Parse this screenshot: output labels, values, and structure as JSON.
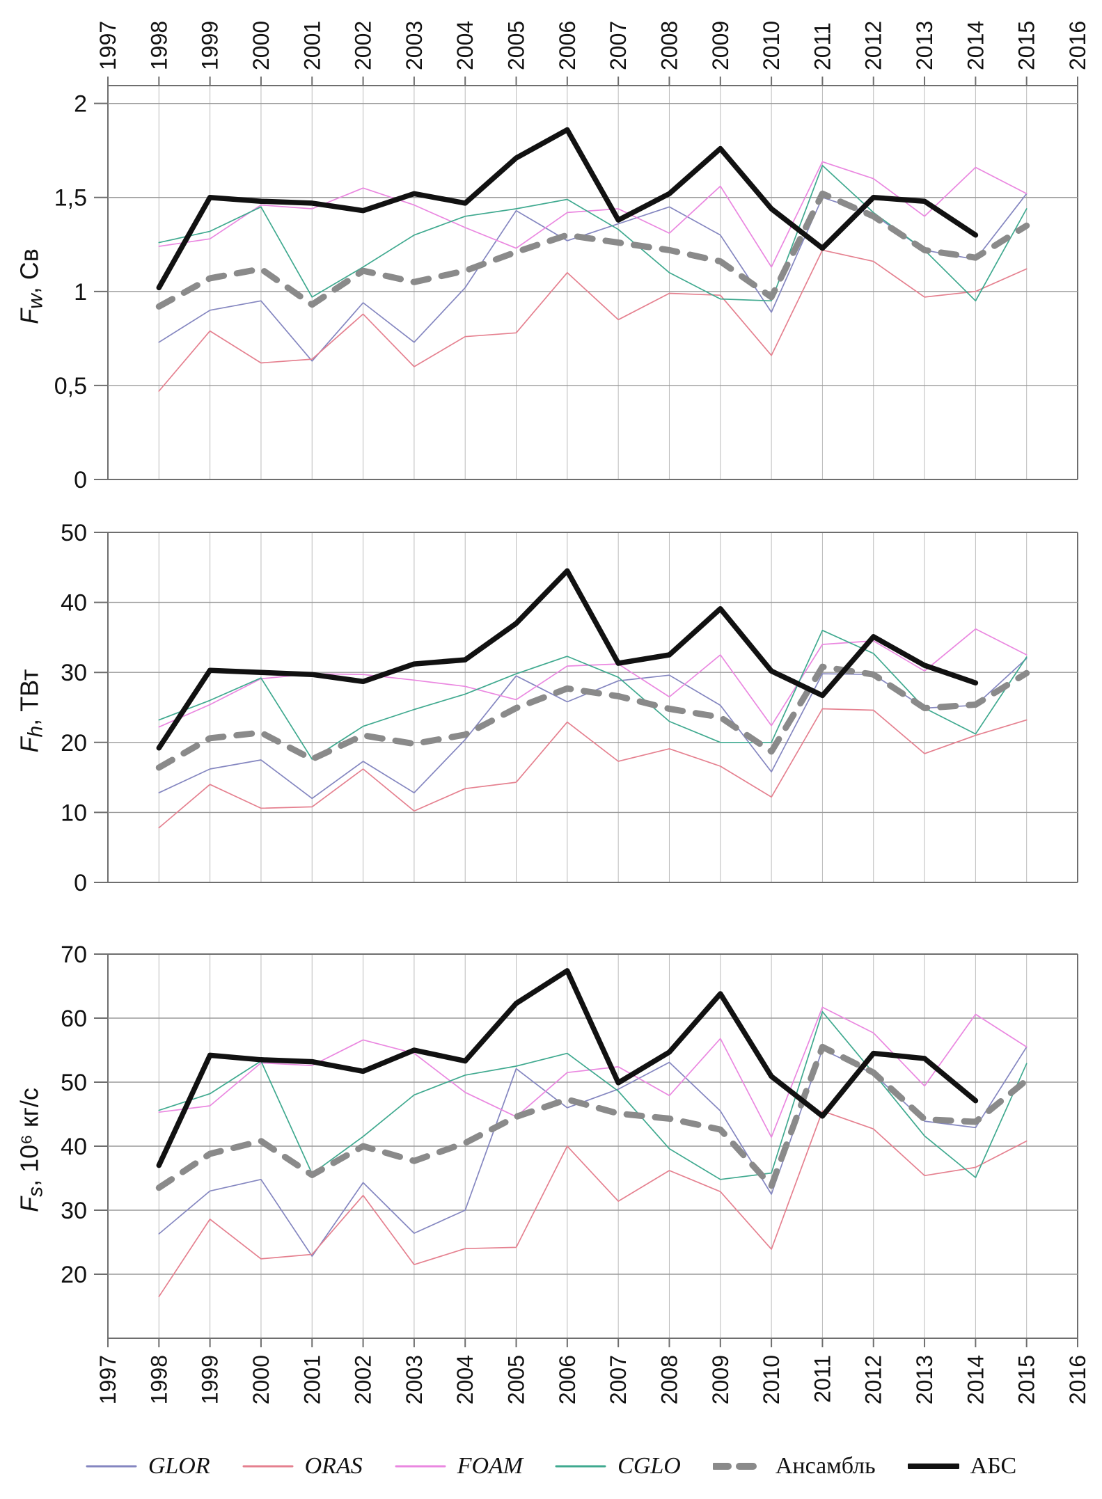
{
  "page": {
    "background": "#ffffff"
  },
  "axes": {
    "years_full": [
      1997,
      1998,
      1999,
      2000,
      2001,
      2002,
      2003,
      2004,
      2005,
      2006,
      2007,
      2008,
      2009,
      2010,
      2011,
      2012,
      2013,
      2014,
      2015,
      2016
    ]
  },
  "colors": {
    "GLOR": "#8486c0",
    "ORAS": "#e5808f",
    "FOAM": "#ea87e0",
    "CGLO": "#3fa98f",
    "ensemble": "#8a8a8a",
    "abs": "#111111",
    "grid_minor": "#bbbbbb",
    "grid_major": "#9a9a9a",
    "axis": "#6e6e6e"
  },
  "chart_data": [
    {
      "type": "line",
      "panel": "Fw",
      "ylabel": {
        "main": "F",
        "sub": "w",
        "rest": ", Св"
      },
      "ylim": [
        0,
        2.095
      ],
      "x": [
        1998,
        1999,
        2000,
        2001,
        2002,
        2003,
        2004,
        2005,
        2006,
        2007,
        2008,
        2009,
        2010,
        2011,
        2012,
        2013,
        2014,
        2015
      ],
      "yticks": [
        {
          "v": 0,
          "label": "0"
        },
        {
          "v": 0.5,
          "label": "0,5"
        },
        {
          "v": 1,
          "label": "1"
        },
        {
          "v": 1.5,
          "label": "1,5"
        },
        {
          "v": 2,
          "label": "2"
        }
      ],
      "series": [
        {
          "name": "GLOR",
          "color": "#8486c0",
          "width": 1.7,
          "style": "solid",
          "values": [
            0.73,
            0.9,
            0.95,
            0.63,
            0.94,
            0.73,
            1.02,
            1.43,
            1.27,
            1.36,
            1.45,
            1.3,
            0.89,
            1.5,
            1.41,
            1.22,
            1.17,
            1.52
          ]
        },
        {
          "name": "ORAS",
          "color": "#e5808f",
          "width": 1.7,
          "style": "solid",
          "values": [
            0.47,
            0.79,
            0.62,
            0.64,
            0.88,
            0.6,
            0.76,
            0.78,
            1.1,
            0.85,
            0.99,
            0.98,
            0.66,
            1.22,
            1.16,
            0.97,
            1.0,
            1.12
          ]
        },
        {
          "name": "FOAM",
          "color": "#ea87e0",
          "width": 1.7,
          "style": "solid",
          "values": [
            1.24,
            1.28,
            1.46,
            1.44,
            1.55,
            1.46,
            1.34,
            1.23,
            1.42,
            1.44,
            1.31,
            1.56,
            1.13,
            1.69,
            1.6,
            1.4,
            1.66,
            1.52
          ]
        },
        {
          "name": "CGLO",
          "color": "#3fa98f",
          "width": 1.7,
          "style": "solid",
          "values": [
            1.26,
            1.32,
            1.45,
            0.97,
            1.13,
            1.3,
            1.4,
            1.44,
            1.49,
            1.33,
            1.1,
            0.96,
            0.95,
            1.67,
            1.42,
            1.22,
            0.95,
            1.44
          ]
        },
        {
          "name": "Ансамбль",
          "color": "#8a8a8a",
          "width": 9,
          "style": "dashed",
          "values": [
            0.92,
            1.07,
            1.12,
            0.93,
            1.11,
            1.05,
            1.11,
            1.21,
            1.3,
            1.26,
            1.22,
            1.16,
            0.97,
            1.52,
            1.4,
            1.22,
            1.18,
            1.35
          ]
        },
        {
          "name": "АБС",
          "color": "#111111",
          "width": 7.5,
          "style": "thick",
          "values": [
            1.02,
            1.5,
            1.48,
            1.47,
            1.43,
            1.52,
            1.47,
            1.71,
            1.86,
            1.38,
            1.52,
            1.76,
            1.44,
            1.23,
            1.5,
            1.48,
            1.3
          ]
        }
      ]
    },
    {
      "type": "line",
      "panel": "Fh",
      "ylabel": {
        "main": "F",
        "sub": "h",
        "rest": ", ТВт"
      },
      "ylim": [
        0,
        50
      ],
      "x": [
        1998,
        1999,
        2000,
        2001,
        2002,
        2003,
        2004,
        2005,
        2006,
        2007,
        2008,
        2009,
        2010,
        2011,
        2012,
        2013,
        2014,
        2015
      ],
      "yticks": [
        {
          "v": 0,
          "label": "0"
        },
        {
          "v": 10,
          "label": "10"
        },
        {
          "v": 20,
          "label": "20"
        },
        {
          "v": 30,
          "label": "30"
        },
        {
          "v": 40,
          "label": "40"
        },
        {
          "v": 50,
          "label": "50"
        }
      ],
      "series": [
        {
          "name": "GLOR",
          "color": "#8486c0",
          "width": 1.7,
          "style": "solid",
          "values": [
            12.8,
            16.2,
            17.5,
            12.0,
            17.3,
            12.8,
            20.4,
            29.5,
            25.8,
            28.8,
            29.6,
            25.3,
            15.8,
            29.8,
            29.7,
            24.9,
            25.3,
            32.0
          ]
        },
        {
          "name": "ORAS",
          "color": "#e5808f",
          "width": 1.7,
          "style": "solid",
          "values": [
            7.8,
            14.0,
            10.6,
            10.8,
            16.2,
            10.2,
            13.4,
            14.3,
            22.9,
            17.3,
            19.1,
            16.6,
            12.2,
            24.8,
            24.6,
            18.4,
            21.0,
            23.2
          ]
        },
        {
          "name": "FOAM",
          "color": "#ea87e0",
          "width": 1.7,
          "style": "solid",
          "values": [
            22.2,
            25.4,
            29.1,
            29.8,
            29.7,
            28.9,
            28.0,
            26.1,
            30.9,
            31.2,
            26.5,
            32.5,
            22.4,
            34.0,
            34.5,
            30.2,
            36.2,
            32.5
          ]
        },
        {
          "name": "CGLO",
          "color": "#3fa98f",
          "width": 1.7,
          "style": "solid",
          "values": [
            23.2,
            26.0,
            29.2,
            17.6,
            22.3,
            24.7,
            26.9,
            29.8,
            32.3,
            29.3,
            23.0,
            20.0,
            20.0,
            36.0,
            32.7,
            24.9,
            21.2,
            32.2
          ]
        },
        {
          "name": "Ансамбль",
          "color": "#8a8a8a",
          "width": 9,
          "style": "dashed",
          "values": [
            16.4,
            20.6,
            21.4,
            17.6,
            21.0,
            19.8,
            21.1,
            24.9,
            27.7,
            26.6,
            24.8,
            23.6,
            18.7,
            30.8,
            29.7,
            24.9,
            25.4,
            29.9
          ]
        },
        {
          "name": "АБС",
          "color": "#111111",
          "width": 7.5,
          "style": "thick",
          "values": [
            19.2,
            30.3,
            30.0,
            29.7,
            28.7,
            31.2,
            31.8,
            37.0,
            44.5,
            31.3,
            32.5,
            39.1,
            30.2,
            26.7,
            35.1,
            31.0,
            28.5
          ]
        }
      ]
    },
    {
      "type": "line",
      "panel": "Fs",
      "ylabel": {
        "main": "F",
        "sub": "s",
        "rest": ", 10⁶ кг/с"
      },
      "ylim": [
        10,
        70
      ],
      "x": [
        1998,
        1999,
        2000,
        2001,
        2002,
        2003,
        2004,
        2005,
        2006,
        2007,
        2008,
        2009,
        2010,
        2011,
        2012,
        2013,
        2014,
        2015
      ],
      "yticks": [
        {
          "v": 20,
          "label": "20"
        },
        {
          "v": 30,
          "label": "30"
        },
        {
          "v": 40,
          "label": "40"
        },
        {
          "v": 50,
          "label": "50"
        },
        {
          "v": 60,
          "label": "60"
        },
        {
          "v": 70,
          "label": "70"
        }
      ],
      "series": [
        {
          "name": "GLOR",
          "color": "#8486c0",
          "width": 1.7,
          "style": "solid",
          "values": [
            26.3,
            33.0,
            34.8,
            22.8,
            34.3,
            26.4,
            30.0,
            52.1,
            46.0,
            48.9,
            53.1,
            45.5,
            32.5,
            55.1,
            51.3,
            43.9,
            42.9,
            55.5
          ]
        },
        {
          "name": "ORAS",
          "color": "#e5808f",
          "width": 1.7,
          "style": "solid",
          "values": [
            16.5,
            28.6,
            22.4,
            23.1,
            32.3,
            21.5,
            24.0,
            24.2,
            40.0,
            31.4,
            36.2,
            32.9,
            23.9,
            45.5,
            42.7,
            35.4,
            36.7,
            40.8
          ]
        },
        {
          "name": "FOAM",
          "color": "#ea87e0",
          "width": 1.7,
          "style": "solid",
          "values": [
            45.3,
            46.3,
            53.0,
            52.6,
            56.6,
            54.5,
            48.4,
            44.6,
            51.5,
            52.4,
            47.9,
            56.8,
            41.4,
            61.7,
            57.7,
            49.4,
            60.6,
            55.5
          ]
        },
        {
          "name": "CGLO",
          "color": "#3fa98f",
          "width": 1.7,
          "style": "solid",
          "values": [
            45.6,
            48.2,
            53.3,
            35.7,
            41.5,
            48.0,
            51.1,
            52.5,
            54.5,
            48.6,
            39.6,
            34.8,
            35.8,
            61.0,
            51.4,
            41.6,
            35.1,
            52.9
          ]
        },
        {
          "name": "Ансамбль",
          "color": "#8a8a8a",
          "width": 9,
          "style": "dashed",
          "values": [
            33.5,
            38.8,
            40.8,
            35.5,
            40.0,
            37.7,
            40.5,
            44.6,
            47.3,
            45.1,
            44.3,
            42.6,
            33.8,
            55.5,
            51.5,
            44.2,
            43.8,
            50.3
          ]
        },
        {
          "name": "АБС",
          "color": "#111111",
          "width": 7.5,
          "style": "thick",
          "values": [
            37.0,
            54.2,
            53.5,
            53.2,
            51.7,
            55.0,
            53.3,
            62.3,
            67.4,
            49.9,
            54.7,
            63.8,
            50.9,
            44.7,
            54.5,
            53.7,
            47.1
          ]
        }
      ]
    }
  ],
  "legend": {
    "items": [
      {
        "label": "GLOR",
        "color": "#8486c0",
        "style": "solid",
        "italic": true
      },
      {
        "label": "ORAS",
        "color": "#e5808f",
        "style": "solid",
        "italic": true
      },
      {
        "label": "FOAM",
        "color": "#ea87e0",
        "style": "solid",
        "italic": true
      },
      {
        "label": "CGLO",
        "color": "#3fa98f",
        "style": "solid",
        "italic": true
      },
      {
        "label": "Ансамбль",
        "color": "#8a8a8a",
        "style": "dashed",
        "italic": false
      },
      {
        "label": "АБС",
        "color": "#111111",
        "style": "thick",
        "italic": false
      }
    ]
  }
}
